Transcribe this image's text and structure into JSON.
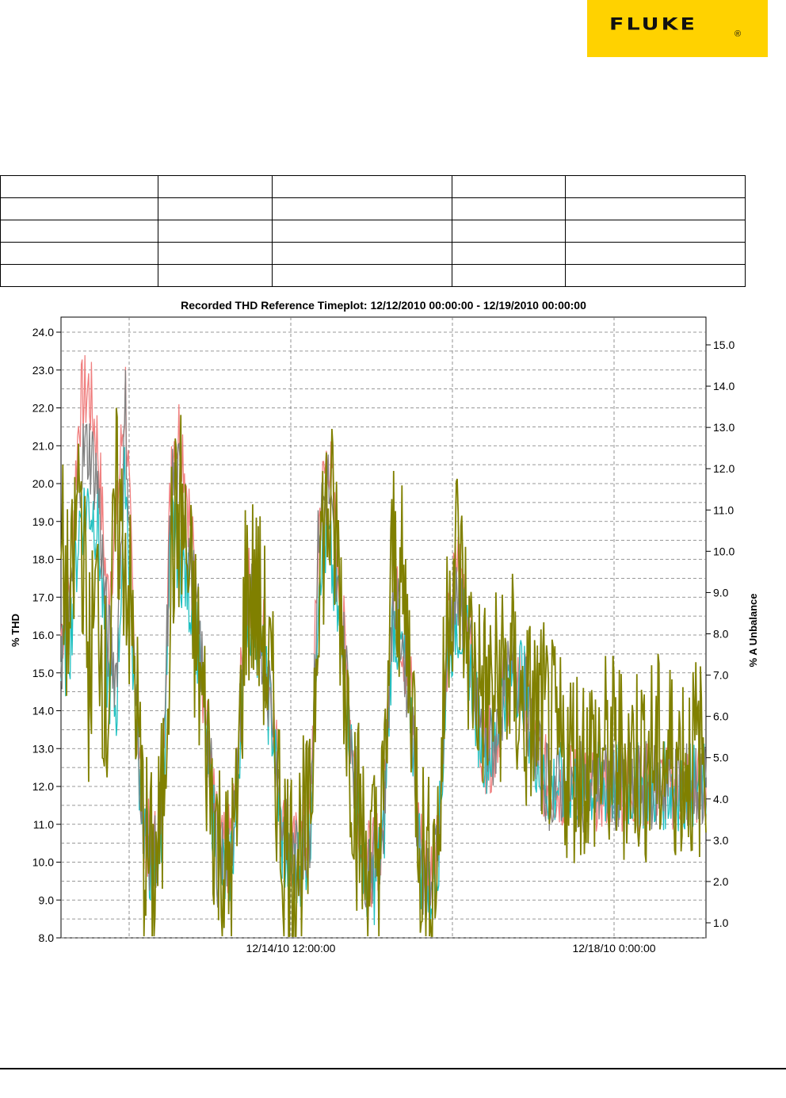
{
  "logo": {
    "text": "FLUKE",
    "mark": "®",
    "color": "#ffd200"
  },
  "table": {
    "rows": 5,
    "cols": 5
  },
  "chart_data": {
    "type": "line",
    "title": "Recorded THD Reference Timeplot: 12/12/2010 00:00:00 - 12/19/2010 00:00:00",
    "ylabel": "% THD",
    "y2label": "% A Unbalance",
    "xlim": [
      "12/12/2010 00:00:00",
      "12/19/2010 00:00:00"
    ],
    "ylim": [
      8.0,
      24.0
    ],
    "y2lim": [
      1.0,
      15.0
    ],
    "yticks": [
      "8.0",
      "9.0",
      "10.0",
      "11.0",
      "12.0",
      "13.0",
      "14.0",
      "15.0",
      "16.0",
      "17.0",
      "18.0",
      "19.0",
      "20.0",
      "21.0",
      "22.0",
      "23.0",
      "24.0"
    ],
    "y2ticks": [
      "1.0",
      "2.0",
      "3.0",
      "4.0",
      "5.0",
      "6.0",
      "7.0",
      "8.0",
      "9.0",
      "10.0",
      "11.0",
      "12.0",
      "13.0",
      "14.0",
      "15.0"
    ],
    "xtick_labels": [
      "12/14/10 12:00:00",
      "12/18/10 0:00:00"
    ],
    "grid": true,
    "series": [
      {
        "color": "#f08080",
        "axis": "left",
        "t": [
          0,
          0.1,
          0.2,
          0.3,
          0.4,
          0.5,
          0.6,
          0.7,
          0.8,
          0.9,
          1,
          1.1,
          1.2,
          1.3,
          1.4,
          1.5,
          1.6,
          1.7,
          1.8,
          1.9,
          2,
          2.1,
          2.2,
          2.3,
          2.4,
          2.5,
          2.6,
          2.7,
          2.8,
          2.9,
          3,
          3.1,
          3.2,
          3.3,
          3.4,
          3.5,
          3.6,
          3.7,
          3.8,
          3.9,
          4,
          4.1,
          4.2,
          4.3,
          4.4,
          4.5,
          4.6,
          4.7,
          4.8,
          4.9,
          5,
          5.1,
          5.2,
          5.3,
          5.4,
          5.5,
          5.6,
          5.7,
          5.8,
          5.9,
          6,
          6.1,
          6.2,
          6.3,
          6.4,
          6.5,
          6.6,
          6.7,
          6.8,
          6.9,
          7
        ],
        "values": [
          16,
          17.5,
          22,
          22.5,
          21,
          17,
          19,
          22.5,
          15,
          11,
          10,
          12,
          21,
          21.5,
          19,
          16,
          13,
          10.5,
          10,
          12,
          17,
          17.5,
          16,
          14,
          11,
          10,
          10.5,
          11,
          19,
          21,
          18,
          15,
          12,
          10,
          10,
          11,
          17.5,
          16,
          14.5,
          10.5,
          9.5,
          11,
          16,
          18,
          17,
          14,
          13,
          13,
          14.5,
          15,
          15,
          13.5,
          12.5,
          12,
          12,
          12,
          12,
          12,
          12,
          12,
          12,
          12,
          12,
          12,
          12,
          12,
          12,
          12,
          12,
          12,
          12
        ]
      },
      {
        "color": "#20c0c0",
        "axis": "left",
        "t": [
          0,
          0.1,
          0.2,
          0.3,
          0.4,
          0.5,
          0.6,
          0.7,
          0.8,
          0.9,
          1,
          1.1,
          1.2,
          1.3,
          1.4,
          1.5,
          1.6,
          1.7,
          1.8,
          1.9,
          2,
          2.1,
          2.2,
          2.3,
          2.4,
          2.5,
          2.6,
          2.7,
          2.8,
          2.9,
          3,
          3.1,
          3.2,
          3.3,
          3.4,
          3.5,
          3.6,
          3.7,
          3.8,
          3.9,
          4,
          4.1,
          4.2,
          4.3,
          4.4,
          4.5,
          4.6,
          4.7,
          4.8,
          4.9,
          5,
          5.1,
          5.2,
          5.3,
          5.4,
          5.5,
          5.6,
          5.7,
          5.8,
          5.9,
          6,
          6.1,
          6.2,
          6.3,
          6.4,
          6.5,
          6.6,
          6.7,
          6.8,
          6.9,
          7
        ],
        "values": [
          15,
          16,
          19,
          19.5,
          19,
          15,
          14,
          20.5,
          14,
          11,
          9.5,
          11,
          19,
          18,
          17,
          15.5,
          12.5,
          10,
          9.5,
          11,
          16.5,
          16.5,
          15,
          13.5,
          10.5,
          9.5,
          10,
          10.5,
          18,
          18.5,
          16.5,
          14.5,
          11.5,
          9.5,
          9.5,
          10.5,
          16.5,
          15.5,
          14,
          10,
          9,
          10.5,
          15.5,
          16.5,
          16,
          14,
          13,
          13,
          14.5,
          15,
          15,
          13.5,
          12.5,
          12,
          12,
          12,
          12,
          12,
          12,
          12,
          12,
          12,
          12,
          12,
          12,
          12,
          12,
          12,
          12,
          12,
          12
        ]
      },
      {
        "color": "#808080",
        "axis": "left",
        "t": [
          0,
          0.1,
          0.2,
          0.3,
          0.4,
          0.5,
          0.6,
          0.7,
          0.8,
          0.9,
          1,
          1.1,
          1.2,
          1.3,
          1.4,
          1.5,
          1.6,
          1.7,
          1.8,
          1.9,
          2,
          2.1,
          2.2,
          2.3,
          2.4,
          2.5,
          2.6,
          2.7,
          2.8,
          2.9,
          3,
          3.1,
          3.2,
          3.3,
          3.4,
          3.5,
          3.6,
          3.7,
          3.8,
          3.9,
          4,
          4.1,
          4.2,
          4.3,
          4.4,
          4.5,
          4.6,
          4.7,
          4.8,
          4.9,
          5,
          5.1,
          5.2,
          5.3,
          5.4,
          5.5,
          5.6,
          5.7,
          5.8,
          5.9,
          6,
          6.1,
          6.2,
          6.3,
          6.4,
          6.5,
          6.6,
          6.7,
          6.8,
          6.9,
          7
        ],
        "values": [
          15.5,
          16.5,
          20.5,
          21,
          20,
          16,
          15,
          22,
          14.5,
          11,
          10,
          11.5,
          20,
          20,
          18,
          16,
          13,
          10,
          10,
          11.5,
          17,
          17,
          15.5,
          14,
          11,
          10,
          10,
          11,
          19,
          20,
          17,
          15,
          12,
          10,
          10,
          11,
          17,
          16,
          14,
          10,
          9,
          11,
          16,
          17,
          16.5,
          14,
          13,
          13,
          14.5,
          15,
          15,
          13.5,
          12.5,
          12,
          12,
          12,
          12,
          12,
          12,
          12,
          12,
          12,
          12,
          12,
          12,
          12,
          12,
          12,
          12,
          12,
          12
        ]
      },
      {
        "color": "#808000",
        "axis": "right",
        "t": [
          0,
          0.1,
          0.2,
          0.3,
          0.4,
          0.5,
          0.6,
          0.7,
          0.8,
          0.9,
          1,
          1.1,
          1.2,
          1.3,
          1.4,
          1.5,
          1.6,
          1.7,
          1.8,
          1.9,
          2,
          2.1,
          2.2,
          2.3,
          2.4,
          2.5,
          2.6,
          2.7,
          2.8,
          2.9,
          3,
          3.1,
          3.2,
          3.3,
          3.4,
          3.5,
          3.6,
          3.7,
          3.8,
          3.9,
          4,
          4.1,
          4.2,
          4.3,
          4.4,
          4.5,
          4.6,
          4.7,
          4.8,
          4.9,
          5,
          5.1,
          5.2,
          5.3,
          5.4,
          5.5,
          5.6,
          5.7,
          5.8,
          5.9,
          6,
          6.1,
          6.2,
          6.3,
          6.4,
          6.5,
          6.6,
          6.7,
          6.8,
          6.9,
          7
        ],
        "values": [
          10,
          8,
          12,
          7,
          9,
          6,
          11,
          10,
          7,
          3,
          2,
          3.5,
          10,
          11,
          9,
          7,
          5,
          3,
          2,
          3,
          9,
          9,
          8,
          6,
          3,
          2.5,
          3,
          3,
          10,
          11,
          10,
          6.5,
          4,
          2.5,
          2.5,
          3.5,
          10,
          9,
          7,
          3,
          2,
          3,
          9,
          10,
          8,
          7,
          6.5,
          6.5,
          7,
          7,
          6,
          6,
          6,
          5.5,
          5,
          5,
          5,
          5,
          5,
          5,
          5,
          5,
          5,
          5,
          5,
          5,
          5,
          5,
          5,
          5,
          5
        ]
      }
    ]
  }
}
